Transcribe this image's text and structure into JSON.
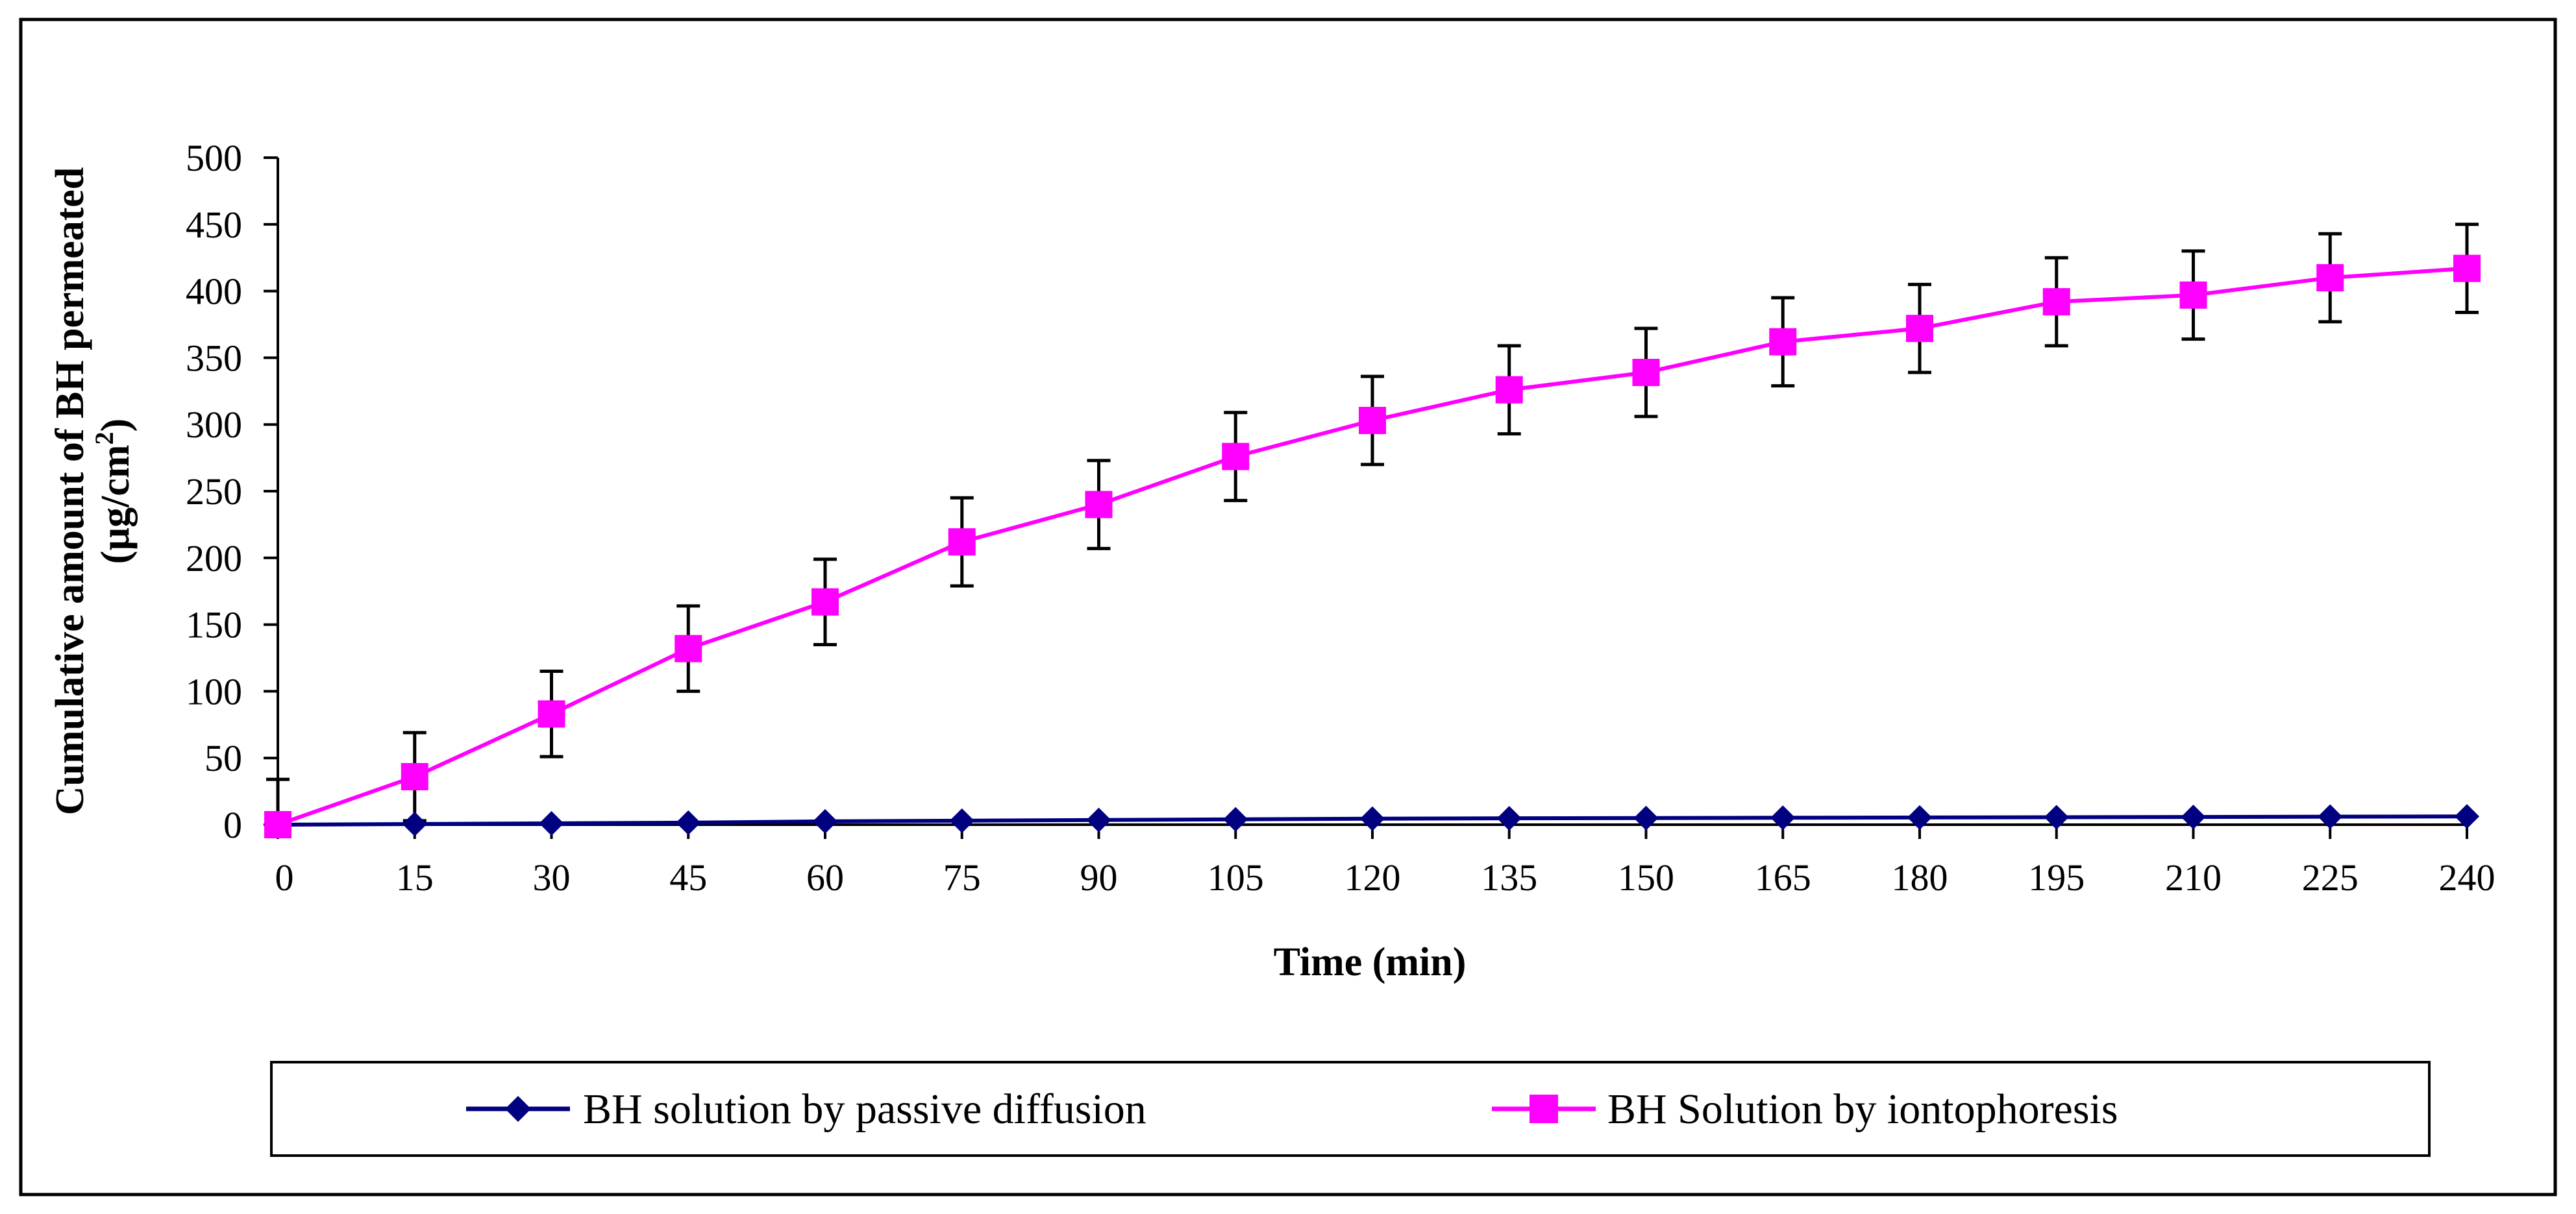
{
  "chart_data": {
    "type": "line",
    "title": "",
    "xlabel": "Time (min)",
    "ylabel_line1": "Cumulative amount of BH permeated",
    "ylabel_line2_prefix": "(µg/cm",
    "ylabel_line2_sup": "2",
    "ylabel_line2_suffix": ")",
    "x": [
      0,
      15,
      30,
      45,
      60,
      75,
      90,
      105,
      120,
      135,
      150,
      165,
      180,
      195,
      210,
      225,
      240
    ],
    "xlim": [
      0,
      240
    ],
    "ylim": [
      0,
      500
    ],
    "yticks": [
      0,
      50,
      100,
      150,
      200,
      250,
      300,
      350,
      400,
      450,
      500
    ],
    "grid": false,
    "legend_position": "bottom",
    "series": [
      {
        "name": "BH solution by passive diffusion",
        "color": "#000080",
        "marker": "diamond",
        "values": [
          0,
          0.5,
          1,
          1.5,
          2.5,
          3,
          3.5,
          4,
          4.5,
          4.8,
          5,
          5.2,
          5.4,
          5.6,
          5.8,
          6,
          6.2
        ],
        "error": [
          34,
          0,
          0,
          0,
          0,
          0,
          0,
          0,
          0,
          0,
          0,
          0,
          0,
          0,
          0,
          0,
          0
        ]
      },
      {
        "name": "BH Solution by iontophoresis",
        "color": "#ff00ff",
        "marker": "square",
        "values": [
          0,
          36,
          83,
          132,
          167,
          212,
          240,
          276,
          303,
          326,
          339,
          362,
          372,
          392,
          397,
          410,
          417
        ],
        "error": [
          0,
          33,
          32,
          32,
          32,
          33,
          33,
          33,
          33,
          33,
          33,
          33,
          33,
          33,
          33,
          33,
          33
        ]
      }
    ]
  }
}
